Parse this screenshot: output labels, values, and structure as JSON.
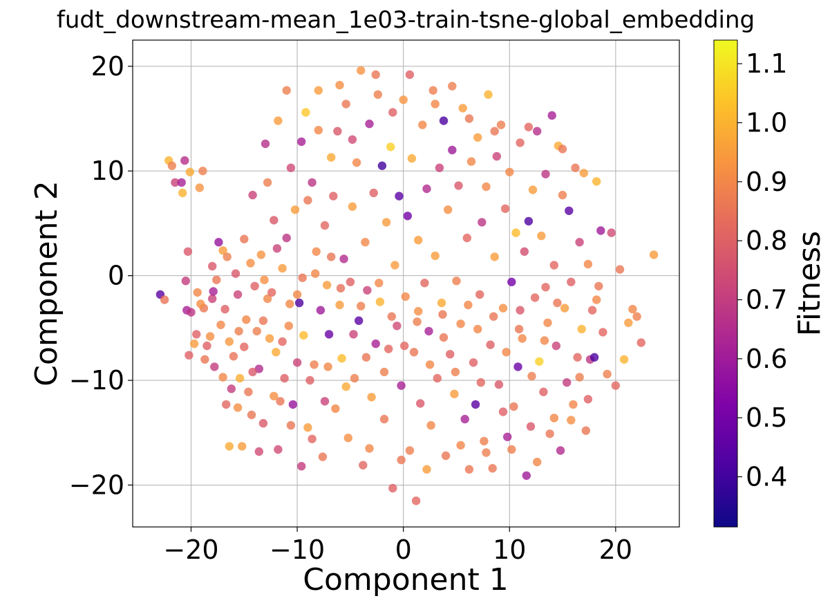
{
  "chart_data": {
    "type": "scatter",
    "title": "fudt_downstream-mean_1e03-train-tsne-global_embedding",
    "xlabel": "Component 1",
    "ylabel": "Component 2",
    "xlim": [
      -25.5,
      26
    ],
    "ylim": [
      -24,
      22.5
    ],
    "xticks": [
      -20,
      -10,
      0,
      10,
      20
    ],
    "yticks": [
      -20,
      -10,
      0,
      10,
      20
    ],
    "xtick_labels": [
      "−20",
      "−10",
      "0",
      "10",
      "20"
    ],
    "ytick_labels": [
      "−20",
      "−10",
      "0",
      "10",
      "20"
    ],
    "grid": true,
    "colorbar": {
      "label": "Fitness",
      "colormap": "plasma",
      "range": [
        0.315,
        1.14
      ],
      "ticks": [
        0.4,
        0.5,
        0.6,
        0.7,
        0.8,
        0.9,
        1.0,
        1.1
      ],
      "tick_labels": [
        "0.4",
        "0.5",
        "0.6",
        "0.7",
        "0.8",
        "0.9",
        "1.0",
        "1.1"
      ]
    },
    "marker_alpha": 0.8,
    "points_format": "[component_1, component_2, fitness]",
    "points": [
      [
        -22.9,
        -1.8,
        0.45
      ],
      [
        -22.5,
        -2.3,
        0.85
      ],
      [
        -22.1,
        11.0,
        1.0
      ],
      [
        -21.8,
        10.5,
        0.88
      ],
      [
        -21.5,
        8.9,
        0.72
      ],
      [
        -20.9,
        8.9,
        0.62
      ],
      [
        -20.8,
        7.9,
        1.0
      ],
      [
        -20.6,
        11.0,
        0.66
      ],
      [
        -20.5,
        -0.5,
        0.7
      ],
      [
        -20.4,
        -3.3,
        0.62
      ],
      [
        -20.3,
        2.3,
        0.78
      ],
      [
        -20.1,
        9.9,
        0.98
      ],
      [
        -20.0,
        -3.5,
        0.68
      ],
      [
        -19.7,
        -6.5,
        0.95
      ],
      [
        -19.5,
        -5.6,
        0.8
      ],
      [
        -19.2,
        8.4,
        0.93
      ],
      [
        -18.9,
        10.0,
        0.88
      ],
      [
        -18.7,
        -8.0,
        0.86
      ],
      [
        -18.5,
        -6.7,
        0.8
      ],
      [
        -18.2,
        -5.8,
        0.92
      ],
      [
        -18.0,
        -2.2,
        0.72
      ],
      [
        -17.8,
        -8.7,
        0.7
      ],
      [
        -17.6,
        -0.4,
        0.86
      ],
      [
        -17.4,
        3.2,
        0.58
      ],
      [
        -17.2,
        -4.7,
        0.9
      ],
      [
        -17.0,
        2.4,
        0.95
      ],
      [
        -16.8,
        -3.2,
        0.8
      ],
      [
        -16.6,
        1.8,
        0.88
      ],
      [
        -16.4,
        -6.3,
        0.94
      ],
      [
        -16.2,
        -10.8,
        0.7
      ],
      [
        -16.0,
        -7.7,
        0.85
      ],
      [
        -15.8,
        0.2,
        0.78
      ],
      [
        -15.6,
        -12.6,
        0.92
      ],
      [
        -15.4,
        -9.8,
        0.99
      ],
      [
        -15.2,
        -16.3,
        0.95
      ],
      [
        -15.0,
        -6.8,
        0.82
      ],
      [
        -14.8,
        -4.2,
        0.9
      ],
      [
        -14.6,
        -11.1,
        0.86
      ],
      [
        -14.4,
        1.2,
        0.92
      ],
      [
        -14.2,
        7.7,
        0.72
      ],
      [
        -14.0,
        -1.0,
        0.8
      ],
      [
        -13.8,
        -5.3,
        0.88
      ],
      [
        -13.6,
        -8.9,
        0.65
      ],
      [
        -13.4,
        2.0,
        0.93
      ],
      [
        -13.2,
        -14.1,
        0.78
      ],
      [
        -13.0,
        12.6,
        0.66
      ],
      [
        -12.8,
        -2.2,
        0.9
      ],
      [
        -12.6,
        -6.0,
        0.95
      ],
      [
        -12.4,
        -1.6,
        0.82
      ],
      [
        -12.2,
        5.3,
        0.78
      ],
      [
        -12.0,
        -7.3,
        0.98
      ],
      [
        -11.8,
        -16.6,
        0.74
      ],
      [
        -11.6,
        -12.0,
        0.86
      ],
      [
        -11.4,
        0.7,
        0.95
      ],
      [
        -11.2,
        -9.8,
        0.8
      ],
      [
        -11.0,
        3.6,
        0.68
      ],
      [
        -10.8,
        -4.8,
        0.9
      ],
      [
        -10.6,
        10.3,
        0.74
      ],
      [
        -10.4,
        -12.3,
        0.58
      ],
      [
        -10.2,
        6.3,
        0.95
      ],
      [
        -10.0,
        -1.8,
        0.9
      ],
      [
        -9.8,
        -2.6,
        0.42
      ],
      [
        -9.6,
        12.8,
        0.62
      ],
      [
        -9.4,
        -5.7,
        1.02
      ],
      [
        -9.2,
        15.6,
        1.04
      ],
      [
        -9.0,
        -14.5,
        0.95
      ],
      [
        -8.8,
        -10.0,
        0.8
      ],
      [
        -8.6,
        8.9,
        0.68
      ],
      [
        -8.4,
        -8.5,
        0.88
      ],
      [
        -8.2,
        2.3,
        0.9
      ],
      [
        -8.0,
        17.7,
        0.95
      ],
      [
        -7.8,
        -3.3,
        0.6
      ],
      [
        -7.6,
        -17.3,
        0.86
      ],
      [
        -7.4,
        4.8,
        0.82
      ],
      [
        -7.2,
        -0.9,
        0.95
      ],
      [
        -7.0,
        -5.6,
        0.48
      ],
      [
        -6.8,
        11.3,
        0.98
      ],
      [
        -6.6,
        7.6,
        0.8
      ],
      [
        -6.4,
        -12.7,
        0.9
      ],
      [
        -6.2,
        13.8,
        0.78
      ],
      [
        -6.0,
        -2.8,
        0.95
      ],
      [
        -5.8,
        -7.9,
        1.02
      ],
      [
        -5.6,
        1.6,
        0.65
      ],
      [
        -5.4,
        16.4,
        0.86
      ],
      [
        -5.2,
        -15.5,
        0.92
      ],
      [
        -5.0,
        -0.6,
        0.8
      ],
      [
        -4.8,
        6.6,
        0.95
      ],
      [
        -4.6,
        -9.8,
        0.88
      ],
      [
        -4.4,
        10.8,
        0.9
      ],
      [
        -4.2,
        -4.3,
        0.45
      ],
      [
        -4.0,
        19.6,
        0.93
      ],
      [
        -3.8,
        -18.1,
        0.82
      ],
      [
        -3.6,
        3.2,
        0.9
      ],
      [
        -3.4,
        -1.4,
        0.72
      ],
      [
        -3.2,
        14.5,
        0.62
      ],
      [
        -3.0,
        -11.6,
        0.95
      ],
      [
        -2.8,
        7.9,
        0.8
      ],
      [
        -2.6,
        -6.5,
        0.62
      ],
      [
        -2.4,
        17.3,
        0.88
      ],
      [
        -2.2,
        -2.5,
        1.0
      ],
      [
        -2.0,
        10.5,
        0.4
      ],
      [
        -1.8,
        -13.7,
        0.86
      ],
      [
        -1.6,
        5.1,
        0.95
      ],
      [
        -1.4,
        -7.0,
        0.82
      ],
      [
        -1.2,
        12.3,
        1.06
      ],
      [
        -1.0,
        -20.3,
        0.8
      ],
      [
        -0.8,
        1.0,
        0.95
      ],
      [
        -0.6,
        -4.8,
        0.74
      ],
      [
        -0.4,
        7.6,
        0.45
      ],
      [
        -0.2,
        -10.5,
        0.62
      ],
      [
        0.0,
        16.8,
        0.93
      ],
      [
        0.2,
        -2.0,
        0.9
      ],
      [
        0.4,
        5.7,
        0.5
      ],
      [
        0.6,
        -16.7,
        0.88
      ],
      [
        0.8,
        11.2,
        0.98
      ],
      [
        1.0,
        -7.3,
        0.86
      ],
      [
        1.2,
        -21.5,
        0.82
      ],
      [
        1.4,
        3.4,
        0.95
      ],
      [
        1.6,
        -12.2,
        0.78
      ],
      [
        1.8,
        14.4,
        0.9
      ],
      [
        2.0,
        -0.7,
        0.82
      ],
      [
        2.2,
        8.3,
        0.65
      ],
      [
        2.4,
        -5.3,
        0.62
      ],
      [
        2.6,
        -14.3,
        0.9
      ],
      [
        2.8,
        17.7,
        0.88
      ],
      [
        3.0,
        1.9,
        0.95
      ],
      [
        3.2,
        -9.8,
        0.82
      ],
      [
        3.4,
        10.3,
        0.72
      ],
      [
        3.6,
        -2.6,
        0.98
      ],
      [
        3.8,
        14.8,
        0.42
      ],
      [
        4.0,
        -17.2,
        0.86
      ],
      [
        4.2,
        6.3,
        0.92
      ],
      [
        4.4,
        -7.5,
        0.8
      ],
      [
        4.6,
        12.0,
        0.6
      ],
      [
        4.8,
        -11.3,
        0.95
      ],
      [
        5.0,
        -0.5,
        0.88
      ],
      [
        5.2,
        8.6,
        0.78
      ],
      [
        5.4,
        -4.6,
        0.9
      ],
      [
        5.6,
        16.0,
        0.95
      ],
      [
        5.8,
        -13.7,
        0.62
      ],
      [
        6.0,
        3.6,
        0.82
      ],
      [
        6.2,
        -18.5,
        0.86
      ],
      [
        6.4,
        10.9,
        0.9
      ],
      [
        6.6,
        -8.3,
        0.8
      ],
      [
        6.8,
        -12.3,
        0.45
      ],
      [
        7.0,
        13.2,
        0.95
      ],
      [
        7.2,
        -1.8,
        0.82
      ],
      [
        7.4,
        5.1,
        0.68
      ],
      [
        7.6,
        -15.8,
        0.88
      ],
      [
        7.8,
        8.5,
        0.9
      ],
      [
        8.0,
        17.3,
        1.0
      ],
      [
        8.2,
        -6.6,
        0.8
      ],
      [
        8.4,
        -18.4,
        0.86
      ],
      [
        8.6,
        1.8,
        0.95
      ],
      [
        8.8,
        11.4,
        0.72
      ],
      [
        9.0,
        -10.4,
        0.78
      ],
      [
        9.2,
        14.4,
        0.88
      ],
      [
        9.4,
        -3.1,
        0.92
      ],
      [
        9.6,
        6.4,
        0.82
      ],
      [
        9.8,
        -15.4,
        0.62
      ],
      [
        10.0,
        9.9,
        0.9
      ],
      [
        10.2,
        -0.6,
        0.5
      ],
      [
        10.4,
        -12.5,
        0.86
      ],
      [
        10.6,
        4.1,
        1.02
      ],
      [
        10.8,
        -8.7,
        0.48
      ],
      [
        11.0,
        12.7,
        0.82
      ],
      [
        11.2,
        -6.0,
        0.9
      ],
      [
        11.4,
        2.3,
        0.75
      ],
      [
        11.6,
        -19.1,
        0.6
      ],
      [
        11.8,
        5.2,
        0.42
      ],
      [
        12.0,
        -14.4,
        0.78
      ],
      [
        12.2,
        8.2,
        0.95
      ],
      [
        12.4,
        -2.1,
        0.82
      ],
      [
        12.6,
        13.8,
        0.66
      ],
      [
        12.8,
        -8.2,
        1.06
      ],
      [
        13.0,
        3.8,
        0.95
      ],
      [
        13.2,
        -11.1,
        0.8
      ],
      [
        13.4,
        9.7,
        0.68
      ],
      [
        13.6,
        -4.5,
        0.9
      ],
      [
        13.8,
        -15.1,
        0.86
      ],
      [
        14.0,
        15.3,
        0.62
      ],
      [
        14.2,
        1.0,
        0.82
      ],
      [
        14.4,
        -6.7,
        0.72
      ],
      [
        14.6,
        12.4,
        0.98
      ],
      [
        14.8,
        -16.7,
        0.65
      ],
      [
        15.0,
        7.7,
        0.88
      ],
      [
        15.2,
        -3.1,
        0.95
      ],
      [
        15.4,
        -10.2,
        0.7
      ],
      [
        15.6,
        6.2,
        0.45
      ],
      [
        15.8,
        -0.6,
        0.8
      ],
      [
        16.0,
        -12.3,
        0.9
      ],
      [
        16.2,
        10.3,
        0.86
      ],
      [
        16.4,
        -7.8,
        0.82
      ],
      [
        16.6,
        3.2,
        0.72
      ],
      [
        16.8,
        -5.1,
        1.0
      ],
      [
        17.0,
        9.8,
        0.95
      ],
      [
        17.2,
        -14.8,
        0.86
      ],
      [
        17.4,
        1.1,
        0.9
      ],
      [
        17.6,
        -8.0,
        0.68
      ],
      [
        17.8,
        -3.3,
        0.82
      ],
      [
        18.0,
        -7.8,
        0.42
      ],
      [
        18.2,
        9.0,
        1.0
      ],
      [
        18.4,
        -1.0,
        0.86
      ],
      [
        18.6,
        4.3,
        0.6
      ],
      [
        18.8,
        -5.4,
        0.82
      ],
      [
        19.2,
        -9.4,
        0.88
      ],
      [
        19.6,
        4.1,
        0.74
      ],
      [
        20.0,
        -10.5,
        0.82
      ],
      [
        20.4,
        0.6,
        0.86
      ],
      [
        20.8,
        -8.0,
        1.0
      ],
      [
        21.2,
        -4.5,
        0.95
      ],
      [
        21.6,
        -3.2,
        0.9
      ],
      [
        22.0,
        -3.9,
        0.88
      ],
      [
        22.4,
        -6.4,
        0.82
      ],
      [
        23.6,
        2.0,
        0.95
      ],
      [
        -19.4,
        -1.6,
        0.9
      ],
      [
        -18.8,
        -3.1,
        0.86
      ],
      [
        -18.0,
        0.9,
        0.78
      ],
      [
        -17.0,
        -9.7,
        0.9
      ],
      [
        -16.4,
        -16.3,
        0.98
      ],
      [
        -15.6,
        -1.8,
        0.72
      ],
      [
        -15.0,
        3.5,
        0.86
      ],
      [
        -14.2,
        -9.2,
        0.78
      ],
      [
        -13.6,
        -16.8,
        0.74
      ],
      [
        -13.2,
        -4.3,
        0.86
      ],
      [
        -12.8,
        8.9,
        0.88
      ],
      [
        -12.2,
        -11.5,
        0.92
      ],
      [
        -11.8,
        14.8,
        0.95
      ],
      [
        -11.4,
        -6.3,
        0.82
      ],
      [
        -11.0,
        17.7,
        0.88
      ],
      [
        -10.6,
        -14.3,
        0.86
      ],
      [
        -10.0,
        -8.3,
        0.72
      ],
      [
        -9.6,
        -18.2,
        0.7
      ],
      [
        -9.0,
        7.2,
        0.86
      ],
      [
        -8.6,
        -15.6,
        0.82
      ],
      [
        -8.0,
        13.9,
        0.9
      ],
      [
        -7.4,
        -12.0,
        0.72
      ],
      [
        -6.8,
        1.8,
        0.86
      ],
      [
        -6.0,
        18.2,
        0.92
      ],
      [
        -5.4,
        -10.6,
        0.98
      ],
      [
        -4.8,
        13.0,
        0.74
      ],
      [
        -4.0,
        -2.9,
        0.88
      ],
      [
        -3.2,
        -16.5,
        0.9
      ],
      [
        -2.6,
        19.2,
        0.86
      ],
      [
        -1.8,
        -9.2,
        0.88
      ],
      [
        -1.0,
        15.6,
        0.8
      ],
      [
        -0.2,
        -17.6,
        0.86
      ],
      [
        0.6,
        19.2,
        0.8
      ],
      [
        1.4,
        -3.4,
        0.92
      ],
      [
        2.2,
        -18.5,
        0.95
      ],
      [
        3.0,
        16.4,
        0.9
      ],
      [
        3.8,
        -5.9,
        0.86
      ],
      [
        4.6,
        18.1,
        0.88
      ],
      [
        5.4,
        -16.2,
        0.9
      ],
      [
        6.2,
        15.0,
        0.86
      ],
      [
        7.0,
        -5.1,
        0.9
      ],
      [
        7.8,
        -16.9,
        0.88
      ],
      [
        8.6,
        13.8,
        0.86
      ],
      [
        9.4,
        -13.0,
        0.8
      ],
      [
        10.2,
        -16.6,
        0.88
      ],
      [
        11.0,
        -3.3,
        0.78
      ],
      [
        11.8,
        14.2,
        0.82
      ],
      [
        12.6,
        -17.8,
        0.9
      ],
      [
        13.4,
        -1.1,
        0.82
      ],
      [
        14.2,
        -13.6,
        0.9
      ],
      [
        15.0,
        12.1,
        0.86
      ],
      [
        15.8,
        -13.8,
        0.92
      ],
      [
        16.6,
        -9.7,
        0.88
      ],
      [
        17.4,
        -11.8,
        0.8
      ],
      [
        18.2,
        -2.3,
        0.9
      ],
      [
        -20.2,
        -7.6,
        0.8
      ],
      [
        -19.1,
        -2.7,
        0.92
      ],
      [
        -17.9,
        -1.5,
        0.62
      ],
      [
        -16.7,
        -12.3,
        0.82
      ],
      [
        -15.5,
        -5.3,
        0.88
      ],
      [
        -14.3,
        -13.3,
        0.86
      ],
      [
        -13.1,
        -0.4,
        0.92
      ],
      [
        -11.9,
        2.6,
        0.72
      ],
      [
        -10.7,
        -2.7,
        0.9
      ],
      [
        -9.5,
        -0.2,
        0.86
      ],
      [
        -8.3,
        0.2,
        0.9
      ],
      [
        -7.1,
        -8.7,
        0.9
      ],
      [
        -5.9,
        -1.2,
        0.84
      ],
      [
        -4.7,
        -5.6,
        0.72
      ],
      [
        -3.5,
        -7.8,
        0.86
      ],
      [
        -2.3,
        -0.7,
        0.9
      ],
      [
        -1.1,
        -3.9,
        0.86
      ],
      [
        0.1,
        -6.7,
        0.82
      ],
      [
        1.3,
        -4.4,
        0.88
      ],
      [
        2.5,
        -8.5,
        0.9
      ],
      [
        3.7,
        -3.7,
        0.86
      ],
      [
        4.9,
        -9.2,
        0.88
      ],
      [
        6.1,
        -2.8,
        0.9
      ],
      [
        7.3,
        -10.2,
        0.82
      ],
      [
        8.5,
        -3.9,
        0.86
      ],
      [
        9.7,
        -7.3,
        0.9
      ],
      [
        10.9,
        -5.1,
        0.86
      ],
      [
        12.1,
        -9.6,
        0.88
      ],
      [
        13.3,
        -6.2,
        0.9
      ],
      [
        14.5,
        -2.6,
        0.86
      ]
    ]
  }
}
